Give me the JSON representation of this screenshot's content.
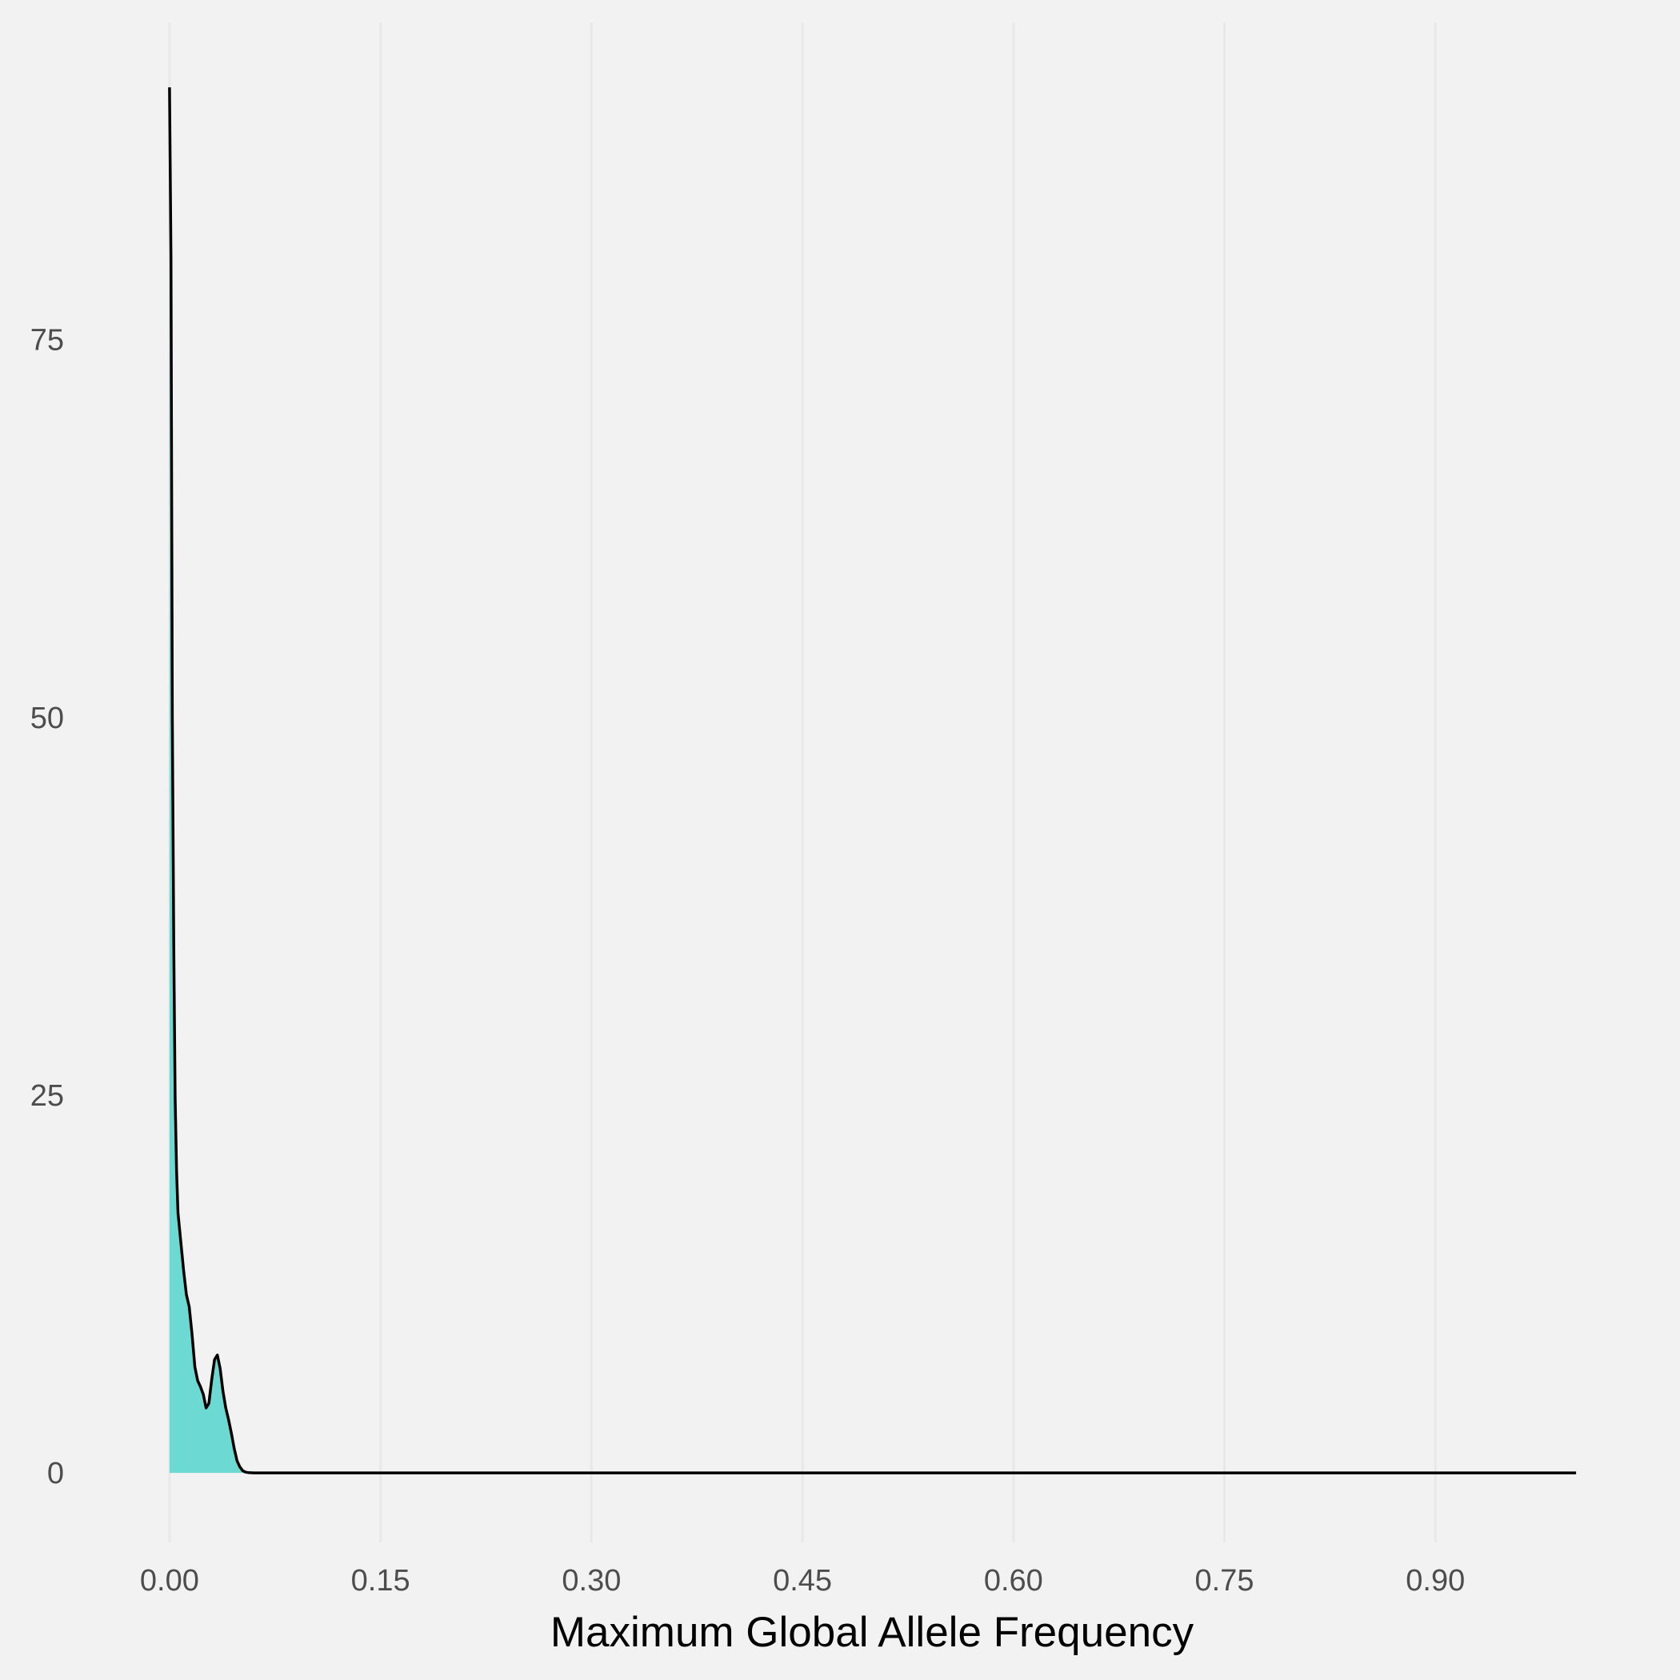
{
  "chart_data": {
    "type": "area",
    "title": "",
    "xlabel": "Maximum Global Allele Frequency",
    "ylabel": "",
    "xlim": [
      -0.05,
      1.05
    ],
    "ylim": [
      -4.6,
      96
    ],
    "x_ticks": [
      0.0,
      0.15,
      0.3,
      0.45,
      0.6,
      0.75,
      0.9
    ],
    "x_tick_labels": [
      "0.00",
      "0.15",
      "0.30",
      "0.45",
      "0.60",
      "0.75",
      "0.90"
    ],
    "y_ticks": [
      0,
      25,
      50,
      75
    ],
    "y_tick_labels": [
      "0",
      "25",
      "50",
      "75"
    ],
    "grid": true,
    "legend": "none",
    "colors": {
      "background": "#f2f2f2",
      "fill": "#6cd9d3",
      "line": "#000000",
      "grid": "#e8e8e8",
      "tick_text": "#4d4d4d",
      "title_text": "#000000"
    },
    "series": [
      {
        "x": [
          0.0,
          0.001,
          0.002,
          0.003,
          0.004,
          0.005,
          0.006,
          0.008,
          0.01,
          0.012,
          0.014,
          0.016,
          0.018,
          0.02,
          0.022,
          0.024,
          0.026,
          0.028,
          0.03,
          0.032,
          0.034,
          0.036,
          0.038,
          0.04,
          0.042,
          0.044,
          0.046,
          0.048,
          0.05,
          0.052,
          0.054,
          0.056,
          0.06,
          0.08,
          0.1,
          0.2,
          0.4,
          0.6,
          0.8,
          1.0
        ],
        "y": [
          91.7,
          80.5,
          50.0,
          35.0,
          24.9,
          20.0,
          17.2,
          15.3,
          13.4,
          11.8,
          11.0,
          9.2,
          7.0,
          6.1,
          5.7,
          5.2,
          4.3,
          4.6,
          6.2,
          7.5,
          7.8,
          6.9,
          5.4,
          4.3,
          3.5,
          2.6,
          1.6,
          0.8,
          0.4,
          0.15,
          0.05,
          0.02,
          0.0,
          0.0,
          0.0,
          0.0,
          0.0,
          0.0,
          0.0,
          0.0
        ]
      }
    ]
  }
}
